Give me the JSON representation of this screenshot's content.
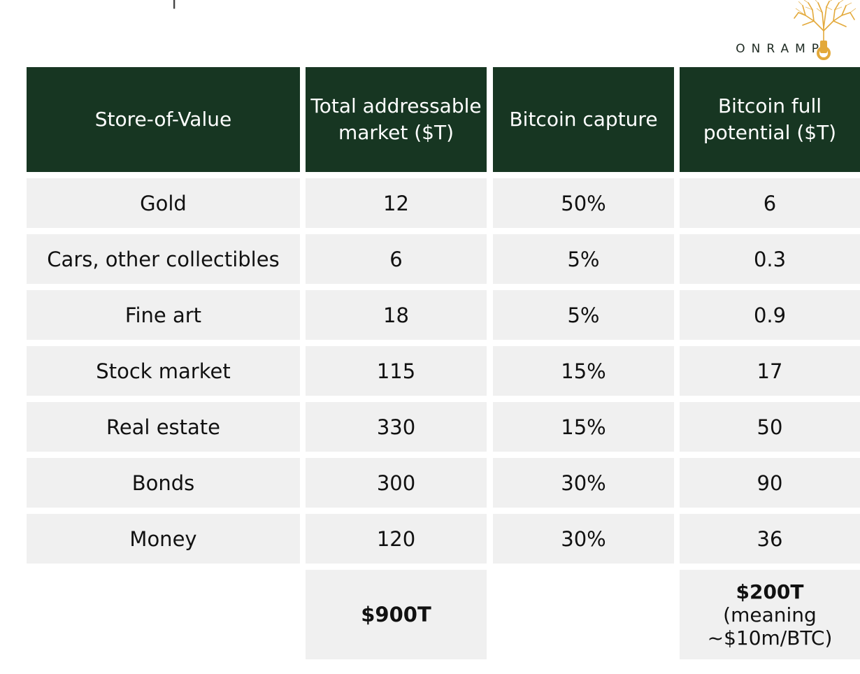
{
  "logo": {
    "text": "ONRAMP",
    "name": "onramp-logo"
  },
  "table": {
    "headers": [
      "Store-of-Value",
      "Total addressable market ($T)",
      "Bitcoin capture",
      "Bitcoin full potential ($T)"
    ],
    "rows": [
      [
        "Gold",
        "12",
        "50%",
        "6"
      ],
      [
        "Cars, other collectibles",
        "6",
        "5%",
        "0.3"
      ],
      [
        "Fine art",
        "18",
        "5%",
        "0.9"
      ],
      [
        "Stock market",
        "115",
        "15%",
        "17"
      ],
      [
        "Real estate",
        "330",
        "15%",
        "50"
      ],
      [
        "Bonds",
        "300",
        "30%",
        "90"
      ],
      [
        "Money",
        "120",
        "30%",
        "36"
      ]
    ],
    "totals": {
      "market": "$900T",
      "potential_value": "$200T",
      "potential_note_line1": "(meaning",
      "potential_note_line2": "~$10m/BTC)"
    }
  },
  "colors": {
    "header_bg": "#173622",
    "header_text": "#ffffff",
    "cell_bg": "#f0f0f0",
    "logo_gold": "#e3a93a"
  }
}
